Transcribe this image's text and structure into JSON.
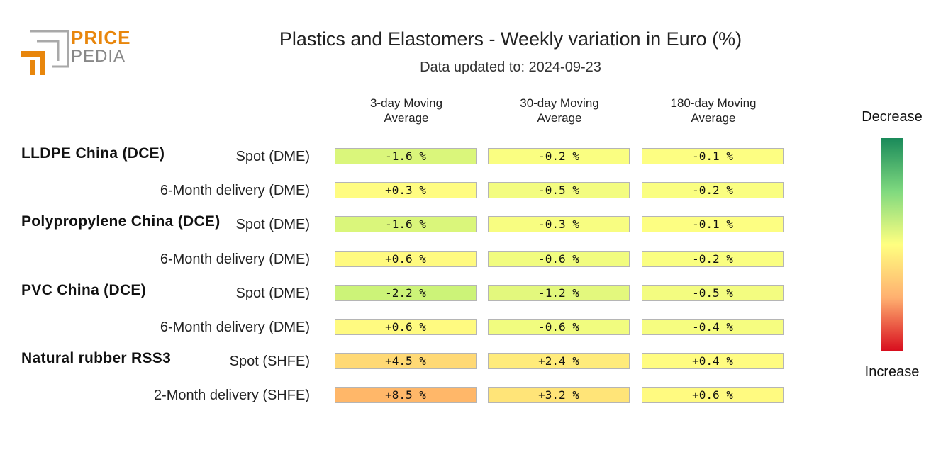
{
  "logo": {
    "line1": "PRICE",
    "line2": "PEDIA"
  },
  "title": "Plastics and Elastomers - Weekly variation in Euro (%)",
  "subtitle": "Data updated to: 2024-09-23",
  "legend": {
    "top_label": "Decrease",
    "bottom_label": "Increase"
  },
  "colors": {
    "decrease_strong": "#1a8a5a",
    "neutral": "#ffff80",
    "increase_strong": "#d80e1e",
    "brand_orange": "#e8860c",
    "brand_gray": "#888888"
  },
  "chart_data": {
    "type": "table",
    "title": "Plastics and Elastomers - Weekly variation in Euro (%)",
    "columns": [
      "3-day Moving\nAverage",
      "30-day Moving\nAverage",
      "180-day Moving\nAverage"
    ],
    "column_lines": [
      [
        "3-day Moving",
        "Average"
      ],
      [
        "30-day Moving",
        "Average"
      ],
      [
        "180-day Moving",
        "Average"
      ]
    ],
    "groups": [
      {
        "name": "LLDPE China (DCE)",
        "rows": [
          {
            "label": "Spot (DME)",
            "values": [
              -1.6,
              -0.2,
              -0.1
            ],
            "text": [
              "-1.6 %",
              "-0.2 %",
              "-0.1 %"
            ]
          },
          {
            "label": "6-Month delivery (DME)",
            "values": [
              0.3,
              -0.5,
              -0.2
            ],
            "text": [
              "+0.3 %",
              "-0.5 %",
              "-0.2 %"
            ]
          }
        ]
      },
      {
        "name": "Polypropylene China (DCE)",
        "rows": [
          {
            "label": "Spot (DME)",
            "values": [
              -1.6,
              -0.3,
              -0.1
            ],
            "text": [
              "-1.6 %",
              "-0.3 %",
              "-0.1 %"
            ]
          },
          {
            "label": "6-Month delivery (DME)",
            "values": [
              0.6,
              -0.6,
              -0.2
            ],
            "text": [
              "+0.6 %",
              "-0.6 %",
              "-0.2 %"
            ]
          }
        ]
      },
      {
        "name": "PVC China (DCE)",
        "rows": [
          {
            "label": "Spot (DME)",
            "values": [
              -2.2,
              -1.2,
              -0.5
            ],
            "text": [
              "-2.2 %",
              "-1.2 %",
              "-0.5 %"
            ]
          },
          {
            "label": "6-Month delivery (DME)",
            "values": [
              0.6,
              -0.6,
              -0.4
            ],
            "text": [
              "+0.6 %",
              "-0.6 %",
              "-0.4 %"
            ]
          }
        ]
      },
      {
        "name": "Natural rubber RSS3",
        "rows": [
          {
            "label": "Spot (SHFE)",
            "values": [
              4.5,
              2.4,
              0.4
            ],
            "text": [
              "+4.5 %",
              "+2.4 %",
              "+0.4 %"
            ]
          },
          {
            "label": "2-Month delivery (SHFE)",
            "values": [
              8.5,
              3.2,
              0.6
            ],
            "text": [
              "+8.5 %",
              "+3.2 %",
              "+0.6 %"
            ]
          }
        ]
      }
    ],
    "color_scale": {
      "top": "Decrease",
      "bottom": "Increase"
    }
  }
}
